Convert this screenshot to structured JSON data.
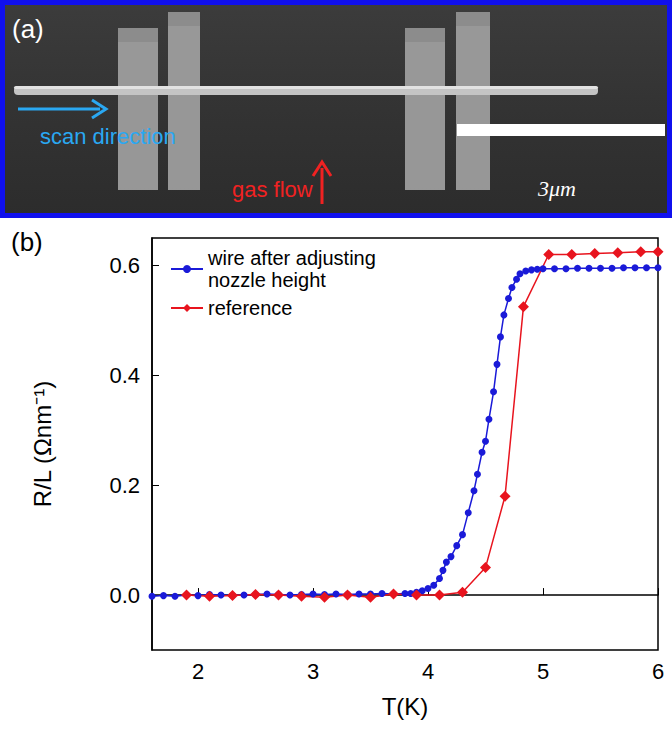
{
  "panel_a": {
    "label": "(a)",
    "annotations": [
      {
        "text": "scan direction",
        "color": "#2aa8f2"
      },
      {
        "text": "gas flow",
        "color": "#f02222"
      }
    ],
    "scale_bar": "3μm"
  },
  "chart_data": {
    "type": "line",
    "title": "(b)",
    "x_label": "T(K)",
    "y_label": "R/L (Ωnm⁻¹)",
    "xlim": [
      1.6,
      6.0
    ],
    "xticks": [
      2,
      3,
      4,
      5,
      6
    ],
    "ylim": [
      -0.1,
      0.65
    ],
    "yticks": [
      {
        "value": 0,
        "label": "0.0"
      },
      0.2,
      0.4,
      0.6
    ],
    "grid": false,
    "legend": "top-left",
    "series": [
      {
        "name": "wire after adjusting nozzle height",
        "color": "#1a1ad8",
        "marker": "circle",
        "line_style": "solid",
        "x": [
          1.6,
          1.7,
          1.8,
          1.9,
          2.0,
          2.1,
          2.2,
          2.3,
          2.4,
          2.5,
          2.6,
          2.7,
          2.8,
          2.9,
          3.0,
          3.1,
          3.2,
          3.3,
          3.4,
          3.5,
          3.6,
          3.7,
          3.8,
          3.85,
          3.9,
          3.95,
          4.0,
          4.05,
          4.1,
          4.13,
          4.16,
          4.2,
          4.25,
          4.3,
          4.35,
          4.4,
          4.43,
          4.47,
          4.5,
          4.53,
          4.57,
          4.6,
          4.63,
          4.66,
          4.7,
          4.73,
          4.77,
          4.8,
          4.85,
          4.9,
          4.95,
          5.0,
          5.1,
          5.2,
          5.3,
          5.4,
          5.5,
          5.6,
          5.7,
          5.8,
          5.9,
          6.0
        ],
        "values": [
          -0.002,
          -0.001,
          -0.002,
          0.0,
          -0.001,
          0.001,
          0.0,
          -0.001,
          0.0,
          0.001,
          0.002,
          0.001,
          0.0,
          0.001,
          0.002,
          0.001,
          0.002,
          0.001,
          0.002,
          0.002,
          0.003,
          0.002,
          0.003,
          0.003,
          0.005,
          0.008,
          0.012,
          0.018,
          0.03,
          0.045,
          0.06,
          0.07,
          0.09,
          0.11,
          0.15,
          0.19,
          0.22,
          0.26,
          0.28,
          0.32,
          0.37,
          0.42,
          0.47,
          0.51,
          0.54,
          0.56,
          0.575,
          0.585,
          0.59,
          0.592,
          0.593,
          0.594,
          0.594,
          0.594,
          0.595,
          0.595,
          0.595,
          0.595,
          0.596,
          0.596,
          0.596,
          0.596
        ]
      },
      {
        "name": "reference",
        "color": "#e8141e",
        "marker": "diamond",
        "line_style": "solid",
        "x": [
          1.9,
          2.1,
          2.3,
          2.5,
          2.7,
          2.9,
          3.1,
          3.3,
          3.5,
          3.7,
          3.9,
          4.1,
          4.3,
          4.5,
          4.67,
          4.83,
          5.05,
          5.25,
          5.45,
          5.65,
          5.85,
          6.0
        ],
        "values": [
          0.0,
          -0.002,
          -0.001,
          0.001,
          0.0,
          -0.002,
          -0.004,
          0.0,
          -0.004,
          0.002,
          0.0,
          0.0,
          0.005,
          0.05,
          0.18,
          0.525,
          0.62,
          0.62,
          0.622,
          0.623,
          0.625,
          0.625
        ]
      }
    ]
  }
}
